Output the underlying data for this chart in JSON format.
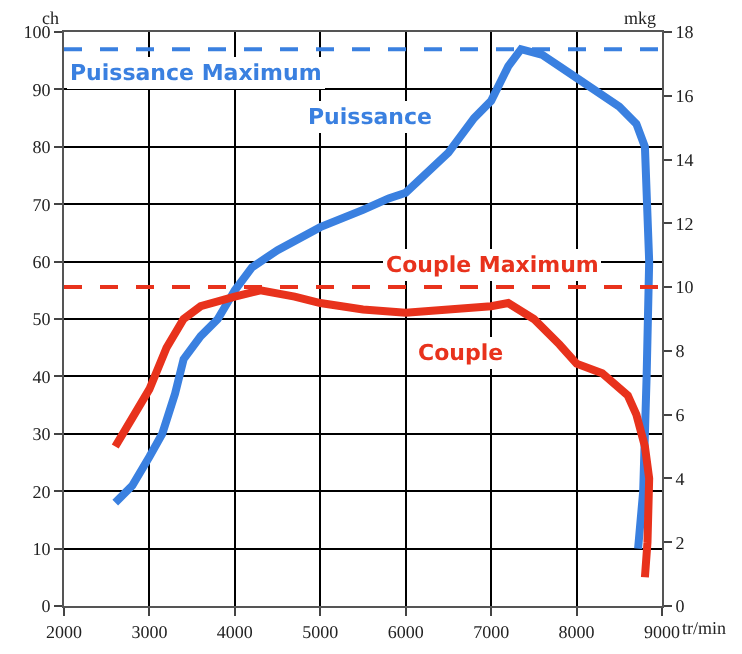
{
  "chart_data": {
    "type": "line",
    "xlabel": "tr/min",
    "ylabel": "ch",
    "y2label": "mkg",
    "xlim": [
      2000,
      9000
    ],
    "xticks": [
      2000,
      3000,
      4000,
      5000,
      6000,
      7000,
      8000,
      9000
    ],
    "ylim": [
      0,
      100
    ],
    "yticks": [
      0,
      10,
      20,
      30,
      40,
      50,
      60,
      70,
      80,
      90,
      100
    ],
    "y2lim": [
      0,
      18
    ],
    "y2ticks": [
      0,
      2,
      4,
      6,
      8,
      10,
      12,
      14,
      16,
      18
    ],
    "grid": true,
    "legend": false,
    "marker": "none",
    "line_style": "solid",
    "series": [
      {
        "name": "Puissance",
        "color": "#3a80e0",
        "axis": "y",
        "x": [
          2600,
          2800,
          3000,
          3150,
          3300,
          3400,
          3600,
          3800,
          4000,
          4200,
          4500,
          5000,
          5500,
          5800,
          6000,
          6500,
          6800,
          7000,
          7200,
          7350,
          7600,
          7800,
          8000,
          8200,
          8500,
          8700,
          8800,
          8850,
          8820,
          8780,
          8720
        ],
        "values": [
          18,
          21,
          26,
          30,
          37,
          43,
          47,
          50,
          55,
          59,
          62,
          66,
          69,
          71,
          72,
          79,
          85,
          88,
          94,
          97,
          96,
          94,
          92,
          90,
          87,
          84,
          80,
          60,
          40,
          20,
          10
        ]
      },
      {
        "name": "Couple",
        "color": "#e8321c",
        "axis": "y2",
        "x": [
          2600,
          2800,
          3000,
          3200,
          3400,
          3600,
          4000,
          4300,
          4700,
          5000,
          5500,
          6000,
          6500,
          7000,
          7200,
          7500,
          7800,
          8000,
          8300,
          8600,
          8700,
          8800,
          8850,
          8830,
          8800
        ],
        "values": [
          5.0,
          5.9,
          6.8,
          8.1,
          9.0,
          9.4,
          9.7,
          9.9,
          9.7,
          9.5,
          9.3,
          9.2,
          9.3,
          9.4,
          9.5,
          9.0,
          8.2,
          7.6,
          7.3,
          6.6,
          6.0,
          5.0,
          4.0,
          2.0,
          0.9
        ]
      }
    ],
    "ref_lines": [
      {
        "axis": "y",
        "value": 97,
        "label": "Puissance Maximum",
        "color": "#3a80e0",
        "line_style": "dashed"
      },
      {
        "axis": "y2",
        "value": 10,
        "label": "Couple Maximum",
        "color": "#e8321c",
        "line_style": "dashed"
      }
    ]
  }
}
